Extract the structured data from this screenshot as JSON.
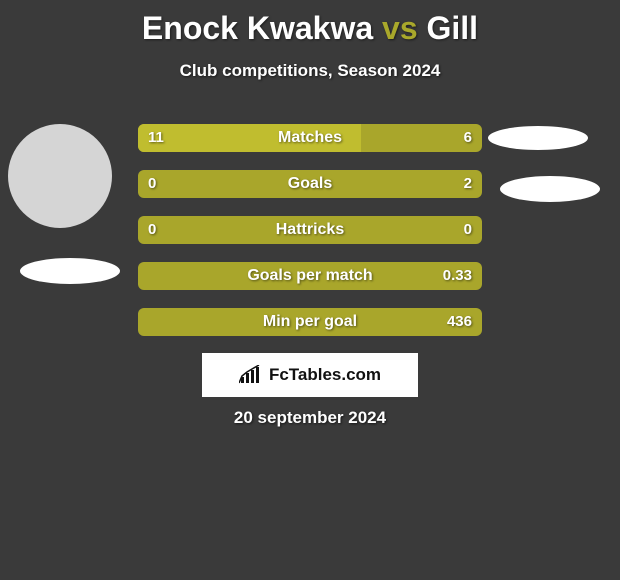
{
  "colors": {
    "background": "#3a3a3a",
    "accent": "#a9a82b",
    "bar_base": "#a9a62b",
    "bar_fill": "#c0bd2f",
    "text": "#ffffff",
    "avatar": "#d5d5d5",
    "brand_bg": "#ffffff",
    "brand_text": "#111111"
  },
  "title": {
    "player1": "Enock Kwakwa",
    "vs": "vs",
    "player2": "Gill"
  },
  "subtitle": "Club competitions, Season 2024",
  "bars": [
    {
      "label": "Matches",
      "left": "11",
      "right": "6",
      "leftRatio": 0.647
    },
    {
      "label": "Goals",
      "left": "0",
      "right": "2",
      "leftRatio": 0.0
    },
    {
      "label": "Hattricks",
      "left": "0",
      "right": "0",
      "leftRatio": 0.0
    },
    {
      "label": "Goals per match",
      "left": "",
      "right": "0.33",
      "leftRatio": 0.0
    },
    {
      "label": "Min per goal",
      "left": "",
      "right": "436",
      "leftRatio": 0.0
    }
  ],
  "brand": "FcTables.com",
  "date": "20 september 2024"
}
